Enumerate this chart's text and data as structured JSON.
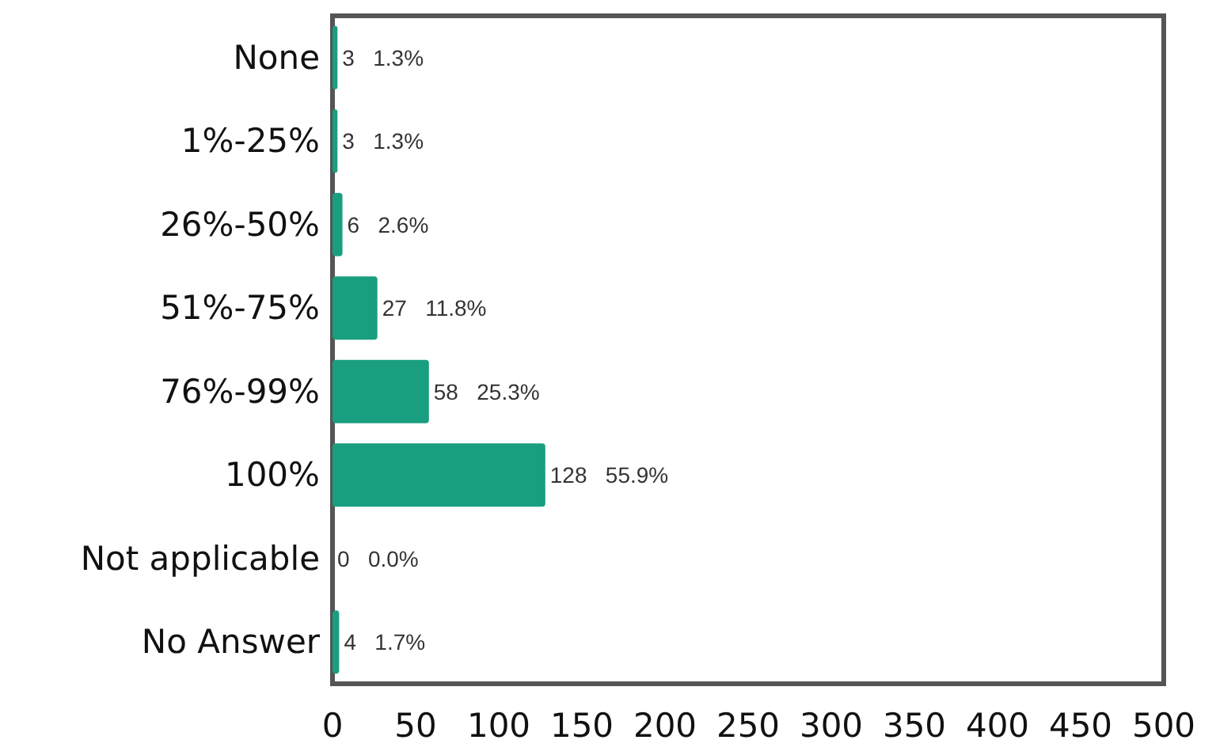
{
  "chart_data": {
    "type": "bar",
    "orientation": "horizontal",
    "categories": [
      "None",
      "1%-25%",
      "26%-50%",
      "51%-75%",
      "76%-99%",
      "100%",
      "Not applicable",
      "No Answer"
    ],
    "values": [
      3,
      3,
      6,
      27,
      58,
      128,
      0,
      4
    ],
    "value_labels": [
      "3   1.3%",
      "3   1.3%",
      "6   2.6%",
      "27   11.8%",
      "58   25.3%",
      "128   55.9%",
      "0   0.0%",
      "4   1.7%"
    ],
    "color": "#1a9e80",
    "xlim": [
      0,
      500
    ],
    "xticks": [
      0,
      50,
      100,
      150,
      200,
      250,
      300,
      350,
      400,
      450,
      500
    ],
    "grid": false
  }
}
